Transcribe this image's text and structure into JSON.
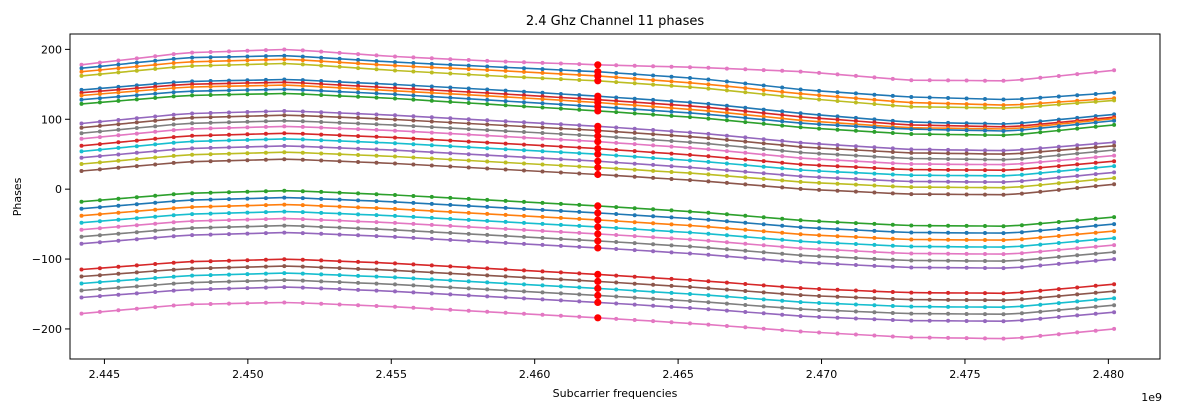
{
  "chart_data": {
    "type": "line",
    "title": "2.4 Ghz Channel 11 phases",
    "xlabel": "Subcarrier frequencies",
    "ylabel": "Phases",
    "x_offset_label": "1e9",
    "xlim": [
      2.4438,
      2.4818
    ],
    "ylim": [
      -243,
      222
    ],
    "x_ticks": [
      2.445,
      2.45,
      2.455,
      2.46,
      2.465,
      2.47,
      2.475,
      2.48
    ],
    "x_tick_labels": [
      "2.445",
      "2.450",
      "2.455",
      "2.460",
      "2.465",
      "2.470",
      "2.475",
      "2.480"
    ],
    "y_ticks": [
      -200,
      -100,
      0,
      100,
      200
    ],
    "y_tick_labels": [
      "−200",
      "−100",
      "0",
      "100",
      "200"
    ],
    "x_range": [
      2.4442,
      2.4802
    ],
    "points_per_series": 57,
    "grid": false,
    "legend": "none",
    "pilot_marker": {
      "x": 2.4622,
      "color": "#ff0000"
    },
    "palette": [
      "#1f77b4",
      "#ff7f0e",
      "#2ca02c",
      "#d62728",
      "#9467bd",
      "#8c564b",
      "#e377c2",
      "#7f7f7f",
      "#bcbd22",
      "#17becf"
    ],
    "series": [
      {
        "color": "#e377c2",
        "values": [
          178,
          195,
          200,
          190,
          183,
          178,
          174,
          168,
          156,
          155,
          170
        ]
      },
      {
        "color": "#1f77b4",
        "values": [
          173,
          188,
          191,
          182,
          175,
          168,
          158,
          142,
          132,
          128,
          138
        ]
      },
      {
        "color": "#ff7f0e",
        "values": [
          168,
          182,
          186,
          177,
          170,
          162,
          151,
          136,
          124,
          120,
          130
        ]
      },
      {
        "color": "#bcbd22",
        "values": [
          162,
          176,
          180,
          170,
          162,
          155,
          145,
          130,
          118,
          116,
          127
        ]
      },
      {
        "color": "#1f77b4",
        "values": [
          142,
          154,
          157,
          150,
          142,
          133,
          123,
          108,
          96,
          93,
          107
        ]
      },
      {
        "color": "#d62728",
        "values": [
          138,
          150,
          153,
          145,
          137,
          128,
          118,
          103,
          92,
          89,
          103
        ]
      },
      {
        "color": "#ff7f0e",
        "values": [
          134,
          146,
          149,
          141,
          133,
          124,
          113,
          98,
          88,
          86,
          101
        ]
      },
      {
        "color": "#1f77b4",
        "values": [
          128,
          140,
          143,
          136,
          127,
          118,
          108,
          94,
          86,
          83,
          98
        ]
      },
      {
        "color": "#2ca02c",
        "values": [
          122,
          134,
          137,
          130,
          121,
          112,
          102,
          88,
          79,
          77,
          92
        ]
      },
      {
        "color": "#9467bd",
        "values": [
          94,
          108,
          112,
          106,
          98,
          90,
          80,
          66,
          57,
          55,
          67
        ]
      },
      {
        "color": "#8c564b",
        "values": [
          88,
          102,
          106,
          100,
          92,
          84,
          74,
          60,
          52,
          50,
          62
        ]
      },
      {
        "color": "#7f7f7f",
        "values": [
          80,
          94,
          98,
          92,
          84,
          76,
          66,
          52,
          44,
          42,
          56
        ]
      },
      {
        "color": "#e377c2",
        "values": [
          72,
          86,
          90,
          84,
          76,
          68,
          58,
          44,
          36,
          35,
          48
        ]
      },
      {
        "color": "#d62728",
        "values": [
          62,
          76,
          80,
          74,
          66,
          58,
          48,
          35,
          28,
          27,
          40
        ]
      },
      {
        "color": "#17becf",
        "values": [
          54,
          68,
          72,
          66,
          58,
          50,
          40,
          27,
          20,
          19,
          33
        ]
      },
      {
        "color": "#9467bd",
        "values": [
          45,
          58,
          62,
          56,
          48,
          40,
          30,
          18,
          11,
          10,
          24
        ]
      },
      {
        "color": "#bcbd22",
        "values": [
          36,
          49,
          53,
          47,
          39,
          31,
          22,
          10,
          3,
          2,
          16
        ]
      },
      {
        "color": "#8c564b",
        "values": [
          26,
          39,
          43,
          37,
          29,
          21,
          12,
          0,
          -7,
          -8,
          7
        ]
      },
      {
        "color": "#2ca02c",
        "values": [
          -18,
          -6,
          -2,
          -8,
          -16,
          -24,
          -33,
          -45,
          -52,
          -53,
          -40
        ]
      },
      {
        "color": "#1f77b4",
        "values": [
          -28,
          -16,
          -12,
          -18,
          -26,
          -34,
          -43,
          -55,
          -62,
          -63,
          -50
        ]
      },
      {
        "color": "#ff7f0e",
        "values": [
          -38,
          -26,
          -22,
          -28,
          -36,
          -44,
          -53,
          -65,
          -72,
          -73,
          -60
        ]
      },
      {
        "color": "#17becf",
        "values": [
          -48,
          -36,
          -32,
          -38,
          -46,
          -54,
          -63,
          -75,
          -82,
          -83,
          -70
        ]
      },
      {
        "color": "#e377c2",
        "values": [
          -58,
          -46,
          -42,
          -48,
          -56,
          -64,
          -73,
          -85,
          -92,
          -93,
          -80
        ]
      },
      {
        "color": "#7f7f7f",
        "values": [
          -68,
          -56,
          -52,
          -58,
          -66,
          -74,
          -83,
          -95,
          -102,
          -103,
          -90
        ]
      },
      {
        "color": "#9467bd",
        "values": [
          -78,
          -66,
          -62,
          -68,
          -76,
          -84,
          -93,
          -105,
          -112,
          -113,
          -100
        ]
      },
      {
        "color": "#d62728",
        "values": [
          -115,
          -104,
          -100,
          -106,
          -114,
          -122,
          -131,
          -142,
          -148,
          -149,
          -136
        ]
      },
      {
        "color": "#8c564b",
        "values": [
          -125,
          -114,
          -110,
          -116,
          -124,
          -132,
          -141,
          -152,
          -158,
          -159,
          -146
        ]
      },
      {
        "color": "#17becf",
        "values": [
          -135,
          -124,
          -120,
          -126,
          -134,
          -142,
          -151,
          -162,
          -168,
          -169,
          -156
        ]
      },
      {
        "color": "#7f7f7f",
        "values": [
          -145,
          -134,
          -130,
          -136,
          -144,
          -152,
          -161,
          -172,
          -178,
          -179,
          -166
        ]
      },
      {
        "color": "#9467bd",
        "values": [
          -155,
          -144,
          -140,
          -146,
          -154,
          -162,
          -171,
          -182,
          -188,
          -189,
          -176
        ]
      },
      {
        "color": "#e377c2",
        "values": [
          -178,
          -165,
          -162,
          -168,
          -176,
          -184,
          -193,
          -204,
          -212,
          -214,
          -200
        ]
      }
    ]
  }
}
